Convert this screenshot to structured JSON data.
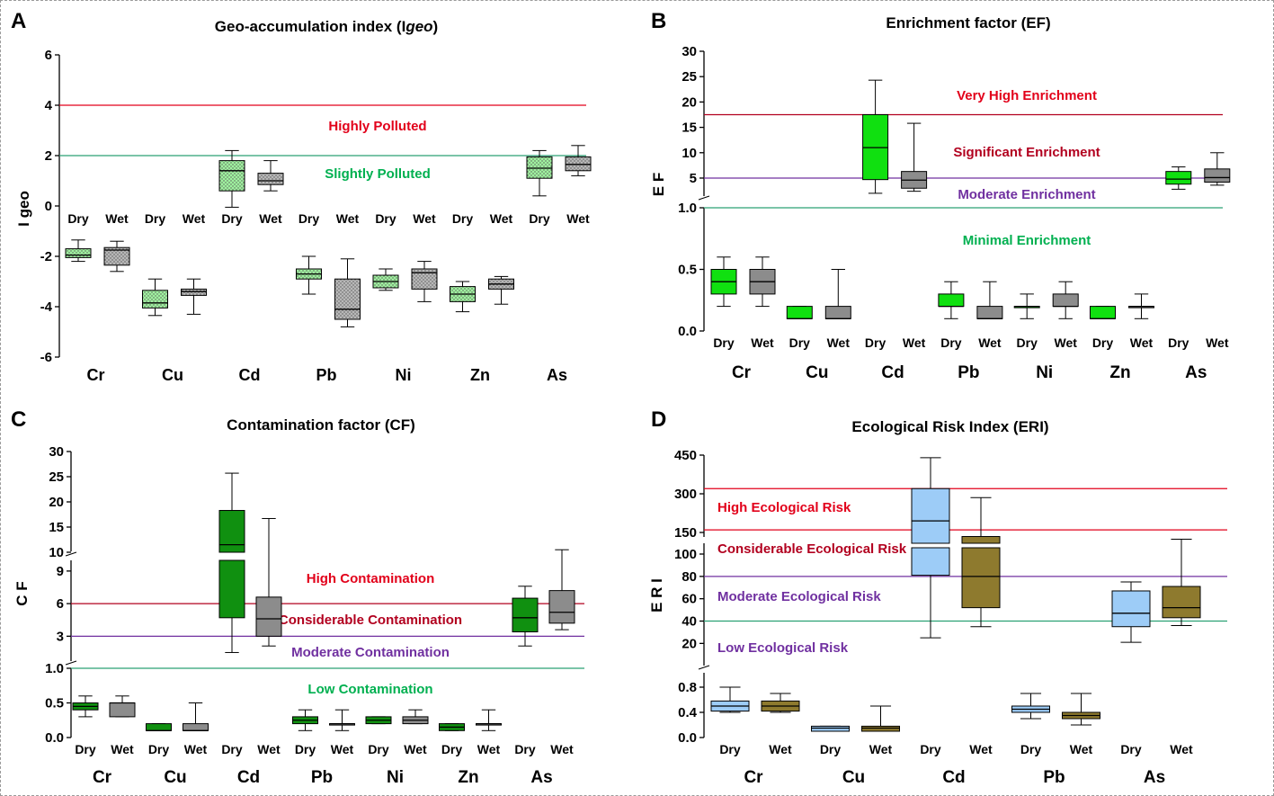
{
  "colors": {
    "red": "#e2001a",
    "darkred": "#b2001f",
    "green": "#00b050",
    "purple": "#7030a0",
    "teal": "#2aa173",
    "lightgreen": "#9ff29f",
    "grey": "#b8b8b8",
    "brightgreen": "#10e010",
    "darkgrey": "#8c8c8c",
    "forestgreen": "#109010",
    "lightblue": "#9dccf7",
    "olive": "#8e7a2e"
  },
  "chart_data": [
    {
      "id": "A",
      "panel_label": "A",
      "type": "box",
      "title_parts": [
        "Geo-accumulation index (",
        "I",
        "geo",
        ")"
      ],
      "ylabel": "I geo",
      "ylim": [
        -6,
        6
      ],
      "yticks": [
        "6",
        "4",
        "2",
        "0",
        "-2",
        "-4",
        "-6"
      ],
      "ytick_values": [
        6,
        4,
        2,
        0,
        -2,
        -4,
        -6
      ],
      "categories": [
        "Cr",
        "Cu",
        "Cd",
        "Pb",
        "Ni",
        "Zn",
        "As"
      ],
      "seasons": [
        "Dry",
        "Wet"
      ],
      "thresholds": [
        {
          "value": 4,
          "color": "red",
          "label": "Highly Polluted",
          "label_color": "red",
          "label_y": 3.0
        },
        {
          "value": 2,
          "color": "teal",
          "label": "Slightly Polluted",
          "label_color": "green",
          "label_y": 1.1
        }
      ],
      "boxes": [
        {
          "category": "Cr",
          "season": "Dry",
          "min": -2.2,
          "q1": -2.05,
          "median": -1.95,
          "q3": -1.7,
          "max": -1.35,
          "fill": "lightgreen"
        },
        {
          "category": "Cr",
          "season": "Wet",
          "min": -2.6,
          "q1": -2.35,
          "median": -1.75,
          "q3": -1.65,
          "max": -1.4,
          "fill": "grey"
        },
        {
          "category": "Cu",
          "season": "Dry",
          "min": -4.35,
          "q1": -4.05,
          "median": -3.85,
          "q3": -3.35,
          "max": -2.9,
          "fill": "lightgreen"
        },
        {
          "category": "Cu",
          "season": "Wet",
          "min": -4.3,
          "q1": -3.55,
          "median": -3.4,
          "q3": -3.3,
          "max": -2.9,
          "fill": "grey"
        },
        {
          "category": "Cd",
          "season": "Dry",
          "min": -0.05,
          "q1": 0.6,
          "median": 1.4,
          "q3": 1.8,
          "max": 2.2,
          "fill": "lightgreen"
        },
        {
          "category": "Cd",
          "season": "Wet",
          "min": 0.6,
          "q1": 0.85,
          "median": 1.0,
          "q3": 1.3,
          "max": 1.8,
          "fill": "grey"
        },
        {
          "category": "Pb",
          "season": "Dry",
          "min": -3.5,
          "q1": -2.9,
          "median": -2.7,
          "q3": -2.5,
          "max": -2.0,
          "fill": "lightgreen"
        },
        {
          "category": "Pb",
          "season": "Wet",
          "min": -4.8,
          "q1": -4.5,
          "median": -4.1,
          "q3": -2.9,
          "max": -2.1,
          "fill": "grey"
        },
        {
          "category": "Ni",
          "season": "Dry",
          "min": -3.35,
          "q1": -3.25,
          "median": -3.0,
          "q3": -2.75,
          "max": -2.5,
          "fill": "lightgreen"
        },
        {
          "category": "Ni",
          "season": "Wet",
          "min": -3.8,
          "q1": -3.3,
          "median": -2.65,
          "q3": -2.5,
          "max": -2.2,
          "fill": "grey"
        },
        {
          "category": "Zn",
          "season": "Dry",
          "min": -4.2,
          "q1": -3.8,
          "median": -3.5,
          "q3": -3.2,
          "max": -3.0,
          "fill": "lightgreen"
        },
        {
          "category": "Zn",
          "season": "Wet",
          "min": -3.9,
          "q1": -3.3,
          "median": -3.1,
          "q3": -2.9,
          "max": -2.8,
          "fill": "grey"
        },
        {
          "category": "As",
          "season": "Dry",
          "min": 0.4,
          "q1": 1.1,
          "median": 1.5,
          "q3": 1.95,
          "max": 2.2,
          "fill": "lightgreen"
        },
        {
          "category": "As",
          "season": "Wet",
          "min": 1.2,
          "q1": 1.4,
          "median": 1.65,
          "q3": 1.95,
          "max": 2.4,
          "fill": "grey"
        }
      ]
    },
    {
      "id": "B",
      "panel_label": "B",
      "type": "box",
      "title": "Enrichment factor (EF)",
      "ylabel": "E F",
      "axis_segments": [
        {
          "range": [
            0,
            1.0
          ],
          "ticks": [
            "0.0",
            "0.5",
            "1.0"
          ],
          "tick_values": [
            0,
            0.5,
            1.0
          ]
        },
        {
          "range": [
            0,
            30
          ],
          "ticks": [
            "5",
            "10",
            "15",
            "20",
            "25",
            "30"
          ],
          "tick_values": [
            5,
            10,
            15,
            20,
            25,
            30
          ]
        }
      ],
      "categories": [
        "Cr",
        "Cu",
        "Cd",
        "Pb",
        "Ni",
        "Zn",
        "As"
      ],
      "seasons": [
        "Dry",
        "Wet"
      ],
      "thresholds": [
        {
          "value": 17.5,
          "color": "darkred"
        },
        {
          "value": 5,
          "color": "purple"
        },
        {
          "value": 1.0,
          "color": "teal"
        }
      ],
      "zone_labels": [
        {
          "label": "Very High  Enrichment",
          "color": "red"
        },
        {
          "label": "Significant Enrichment",
          "color": "darkred"
        },
        {
          "label": "Moderate Enrichment",
          "color": "purple"
        },
        {
          "label": "Minimal Enrichment",
          "color": "green"
        }
      ],
      "boxes": [
        {
          "category": "Cr",
          "season": "Dry",
          "min": 0.2,
          "q1": 0.3,
          "median": 0.4,
          "q3": 0.5,
          "max": 0.6,
          "fill": "brightgreen"
        },
        {
          "category": "Cr",
          "season": "Wet",
          "min": 0.2,
          "q1": 0.3,
          "median": 0.4,
          "q3": 0.5,
          "max": 0.6,
          "fill": "darkgrey"
        },
        {
          "category": "Cu",
          "season": "Dry",
          "min": 0.1,
          "q1": 0.1,
          "median": 0.1,
          "q3": 0.2,
          "max": 0.2,
          "fill": "brightgreen"
        },
        {
          "category": "Cu",
          "season": "Wet",
          "min": 0.1,
          "q1": 0.1,
          "median": 0.1,
          "q3": 0.2,
          "max": 0.5,
          "fill": "darkgrey"
        },
        {
          "category": "Cd",
          "season": "Dry",
          "min": 2.0,
          "q1": 4.7,
          "median": 11,
          "q3": 17.5,
          "max": 24.3,
          "fill": "brightgreen"
        },
        {
          "category": "Cd",
          "season": "Wet",
          "min": 2.4,
          "q1": 3.0,
          "median": 4.6,
          "q3": 6.3,
          "max": 15.8,
          "fill": "darkgrey"
        },
        {
          "category": "Pb",
          "season": "Dry",
          "min": 0.1,
          "q1": 0.2,
          "median": 0.2,
          "q3": 0.3,
          "max": 0.4,
          "fill": "brightgreen"
        },
        {
          "category": "Pb",
          "season": "Wet",
          "min": 0.1,
          "q1": 0.1,
          "median": 0.1,
          "q3": 0.2,
          "max": 0.4,
          "fill": "darkgrey"
        },
        {
          "category": "Ni",
          "season": "Dry",
          "min": 0.1,
          "q1": 0.2,
          "median": 0.2,
          "q3": 0.2,
          "max": 0.3,
          "fill": "brightgreen"
        },
        {
          "category": "Ni",
          "season": "Wet",
          "min": 0.1,
          "q1": 0.2,
          "median": 0.2,
          "q3": 0.3,
          "max": 0.4,
          "fill": "darkgrey"
        },
        {
          "category": "Zn",
          "season": "Dry",
          "min": 0.1,
          "q1": 0.1,
          "median": 0.1,
          "q3": 0.2,
          "max": 0.2,
          "fill": "brightgreen"
        },
        {
          "category": "Zn",
          "season": "Wet",
          "min": 0.1,
          "q1": 0.2,
          "median": 0.2,
          "q3": 0.2,
          "max": 0.3,
          "fill": "darkgrey"
        },
        {
          "category": "As",
          "season": "Dry",
          "min": 2.8,
          "q1": 3.8,
          "median": 4.8,
          "q3": 6.3,
          "max": 7.2,
          "fill": "brightgreen"
        },
        {
          "category": "As",
          "season": "Wet",
          "min": 3.6,
          "q1": 4.2,
          "median": 5.1,
          "q3": 6.8,
          "max": 10.0,
          "fill": "darkgrey"
        }
      ]
    },
    {
      "id": "C",
      "panel_label": "C",
      "type": "box",
      "title": "Contamination factor (CF)",
      "ylabel": "C F",
      "axis_segments": [
        {
          "range": [
            0,
            1.0
          ],
          "ticks": [
            "0.0",
            "0.5",
            "1.0"
          ],
          "tick_values": [
            0,
            0.5,
            1.0
          ]
        },
        {
          "range": [
            1,
            10
          ],
          "ticks": [
            "3",
            "6",
            "9"
          ],
          "tick_values": [
            3,
            6,
            9
          ]
        },
        {
          "range": [
            10,
            30
          ],
          "ticks": [
            "10",
            "15",
            "20",
            "25",
            "30"
          ],
          "tick_values": [
            10,
            15,
            20,
            25,
            30
          ]
        }
      ],
      "categories": [
        "Cr",
        "Cu",
        "Cd",
        "Pb",
        "Ni",
        "Zn",
        "As"
      ],
      "seasons": [
        "Dry",
        "Wet"
      ],
      "thresholds": [
        {
          "value": 6,
          "color": "darkred"
        },
        {
          "value": 3,
          "color": "purple"
        },
        {
          "value": 1.0,
          "color": "teal"
        }
      ],
      "zone_labels": [
        {
          "label": "High Contamination",
          "color": "red"
        },
        {
          "label": "Considerable Contamination",
          "color": "darkred"
        },
        {
          "label": "Moderate Contamination",
          "color": "purple"
        },
        {
          "label": "Low Contamination",
          "color": "green"
        }
      ],
      "boxes": [
        {
          "category": "Cr",
          "season": "Dry",
          "min": 0.3,
          "q1": 0.4,
          "median": 0.45,
          "q3": 0.5,
          "max": 0.6,
          "fill": "forestgreen"
        },
        {
          "category": "Cr",
          "season": "Wet",
          "min": 0.3,
          "q1": 0.3,
          "median": 0.5,
          "q3": 0.5,
          "max": 0.6,
          "fill": "darkgrey"
        },
        {
          "category": "Cu",
          "season": "Dry",
          "min": 0.1,
          "q1": 0.1,
          "median": 0.1,
          "q3": 0.2,
          "max": 0.2,
          "fill": "forestgreen"
        },
        {
          "category": "Cu",
          "season": "Wet",
          "min": 0.1,
          "q1": 0.1,
          "median": 0.1,
          "q3": 0.2,
          "max": 0.5,
          "fill": "darkgrey"
        },
        {
          "category": "Cd",
          "season": "Dry",
          "min": 1.5,
          "q1": 4.7,
          "median": 11.5,
          "q3": 18.3,
          "max": 25.7,
          "fill": "forestgreen"
        },
        {
          "category": "Cd",
          "season": "Wet",
          "min": 2.1,
          "q1": 3.0,
          "median": 4.6,
          "q3": 6.6,
          "max": 16.7,
          "fill": "darkgrey"
        },
        {
          "category": "Pb",
          "season": "Dry",
          "min": 0.1,
          "q1": 0.2,
          "median": 0.25,
          "q3": 0.3,
          "max": 0.4,
          "fill": "forestgreen"
        },
        {
          "category": "Pb",
          "season": "Wet",
          "min": 0.1,
          "q1": 0.2,
          "median": 0.2,
          "q3": 0.2,
          "max": 0.4,
          "fill": "darkgrey"
        },
        {
          "category": "Ni",
          "season": "Dry",
          "min": 0.2,
          "q1": 0.2,
          "median": 0.25,
          "q3": 0.3,
          "max": 0.3,
          "fill": "forestgreen"
        },
        {
          "category": "Ni",
          "season": "Wet",
          "min": 0.2,
          "q1": 0.2,
          "median": 0.25,
          "q3": 0.3,
          "max": 0.4,
          "fill": "darkgrey"
        },
        {
          "category": "Zn",
          "season": "Dry",
          "min": 0.1,
          "q1": 0.1,
          "median": 0.15,
          "q3": 0.2,
          "max": 0.2,
          "fill": "forestgreen"
        },
        {
          "category": "Zn",
          "season": "Wet",
          "min": 0.1,
          "q1": 0.2,
          "median": 0.2,
          "q3": 0.2,
          "max": 0.4,
          "fill": "darkgrey"
        },
        {
          "category": "As",
          "season": "Dry",
          "min": 2.1,
          "q1": 3.4,
          "median": 4.7,
          "q3": 6.5,
          "max": 7.6,
          "fill": "forestgreen"
        },
        {
          "category": "As",
          "season": "Wet",
          "min": 3.6,
          "q1": 4.2,
          "median": 5.2,
          "q3": 7.2,
          "max": 10.5,
          "fill": "darkgrey"
        }
      ]
    },
    {
      "id": "D",
      "panel_label": "D",
      "type": "box",
      "title": "Ecological Risk Index (ERI)",
      "ylabel": "E R I",
      "axis_segments": [
        {
          "range": [
            0,
            0.9
          ],
          "ticks": [
            "0.0",
            "0.4",
            "0.8"
          ],
          "tick_values": [
            0,
            0.4,
            0.8
          ]
        },
        {
          "range": [
            0,
            110
          ],
          "ticks": [
            "20",
            "40",
            "60",
            "80",
            "100"
          ],
          "tick_values": [
            20,
            40,
            60,
            80,
            100
          ]
        },
        {
          "range": [
            110,
            450
          ],
          "ticks": [
            "150",
            "300",
            "450"
          ],
          "tick_values": [
            150,
            300,
            450
          ]
        }
      ],
      "categories": [
        "Cr",
        "Cu",
        "Cd",
        "Pb",
        "As"
      ],
      "seasons": [
        "Dry",
        "Wet"
      ],
      "thresholds": [
        {
          "value": 320,
          "color": "red"
        },
        {
          "value": 160,
          "color": "red"
        },
        {
          "value": 80,
          "color": "purple"
        },
        {
          "value": 40,
          "color": "teal"
        }
      ],
      "zone_labels": [
        {
          "label": "High Ecological Risk",
          "color": "red"
        },
        {
          "label": "Considerable Ecological Risk",
          "color": "darkred"
        },
        {
          "label": "Moderate Ecological Risk",
          "color": "purple"
        },
        {
          "label": "Low Ecological Risk",
          "color": "purple"
        }
      ],
      "boxes": [
        {
          "category": "Cr",
          "season": "Dry",
          "min": 0.4,
          "q1": 0.42,
          "median": 0.5,
          "q3": 0.58,
          "max": 0.8,
          "fill": "lightblue"
        },
        {
          "category": "Cr",
          "season": "Wet",
          "min": 0.4,
          "q1": 0.42,
          "median": 0.5,
          "q3": 0.58,
          "max": 0.7,
          "fill": "olive"
        },
        {
          "category": "Cu",
          "season": "Dry",
          "min": 0.1,
          "q1": 0.1,
          "median": 0.15,
          "q3": 0.18,
          "max": 0.18,
          "fill": "lightblue"
        },
        {
          "category": "Cu",
          "season": "Wet",
          "min": 0.1,
          "q1": 0.1,
          "median": 0.15,
          "q3": 0.18,
          "max": 0.5,
          "fill": "olive"
        },
        {
          "category": "Cd",
          "season": "Dry",
          "min": 25,
          "q1": 81,
          "median": 195,
          "q3": 320,
          "max": 440,
          "fill": "lightblue"
        },
        {
          "category": "Cd",
          "season": "Wet",
          "min": 35,
          "q1": 52,
          "median": 80,
          "q3": 135,
          "max": 285,
          "fill": "olive"
        },
        {
          "category": "Pb",
          "season": "Dry",
          "min": 0.3,
          "q1": 0.4,
          "median": 0.45,
          "q3": 0.5,
          "max": 0.7,
          "fill": "lightblue"
        },
        {
          "category": "Pb",
          "season": "Wet",
          "min": 0.2,
          "q1": 0.3,
          "median": 0.35,
          "q3": 0.4,
          "max": 0.7,
          "fill": "olive"
        },
        {
          "category": "As",
          "season": "Dry",
          "min": 21,
          "q1": 35,
          "median": 47,
          "q3": 67,
          "max": 75,
          "fill": "lightblue"
        },
        {
          "category": "As",
          "season": "Wet",
          "min": 36,
          "q1": 43,
          "median": 52,
          "q3": 71,
          "max": 125,
          "fill": "olive"
        }
      ]
    }
  ]
}
